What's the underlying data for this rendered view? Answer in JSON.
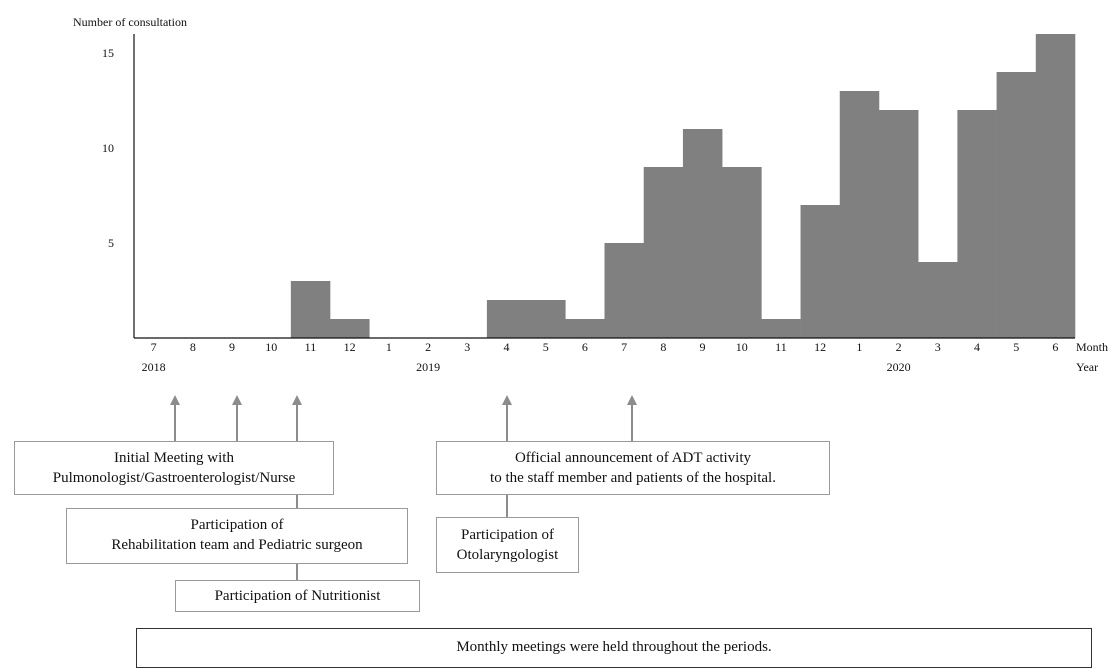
{
  "chart_data": {
    "type": "bar",
    "ylabel": "Number of consultation",
    "x_axis_unit_month": "Month",
    "x_axis_unit_year": "Year",
    "categories": [
      "7",
      "8",
      "9",
      "10",
      "11",
      "12",
      "1",
      "2",
      "3",
      "4",
      "5",
      "6",
      "7",
      "8",
      "9",
      "10",
      "11",
      "12",
      "1",
      "2",
      "3",
      "4",
      "5",
      "6"
    ],
    "years": [
      {
        "label": "2018",
        "at_index": 0
      },
      {
        "label": "2019",
        "at_index": 7
      },
      {
        "label": "2020",
        "at_index": 19
      }
    ],
    "values": [
      0,
      0,
      0,
      0,
      3,
      1,
      0,
      0,
      0,
      2,
      2,
      1,
      5,
      9,
      11,
      9,
      1,
      7,
      13,
      12,
      4,
      12,
      14,
      16
    ],
    "yticks": [
      5,
      10,
      15
    ],
    "ylim": [
      0,
      16
    ],
    "bar_color": "#808080",
    "grid": false
  },
  "annotations": {
    "initial_meeting": [
      "Initial Meeting with",
      "Pulmonologist/Gastroenterologist/Nurse"
    ],
    "rehab": [
      "Participation of",
      "Rehabilitation team and Pediatric surgeon"
    ],
    "nutritionist": [
      "Participation of Nutritionist"
    ],
    "official": [
      "Official announcement of ADT activity",
      "to the staff member and patients of the hospital."
    ],
    "otolaryngologist": [
      "Participation of",
      "Otolaryngologist"
    ],
    "monthly": "Monthly meetings were held throughout the periods."
  },
  "arrow_color": "#8c8c8c"
}
